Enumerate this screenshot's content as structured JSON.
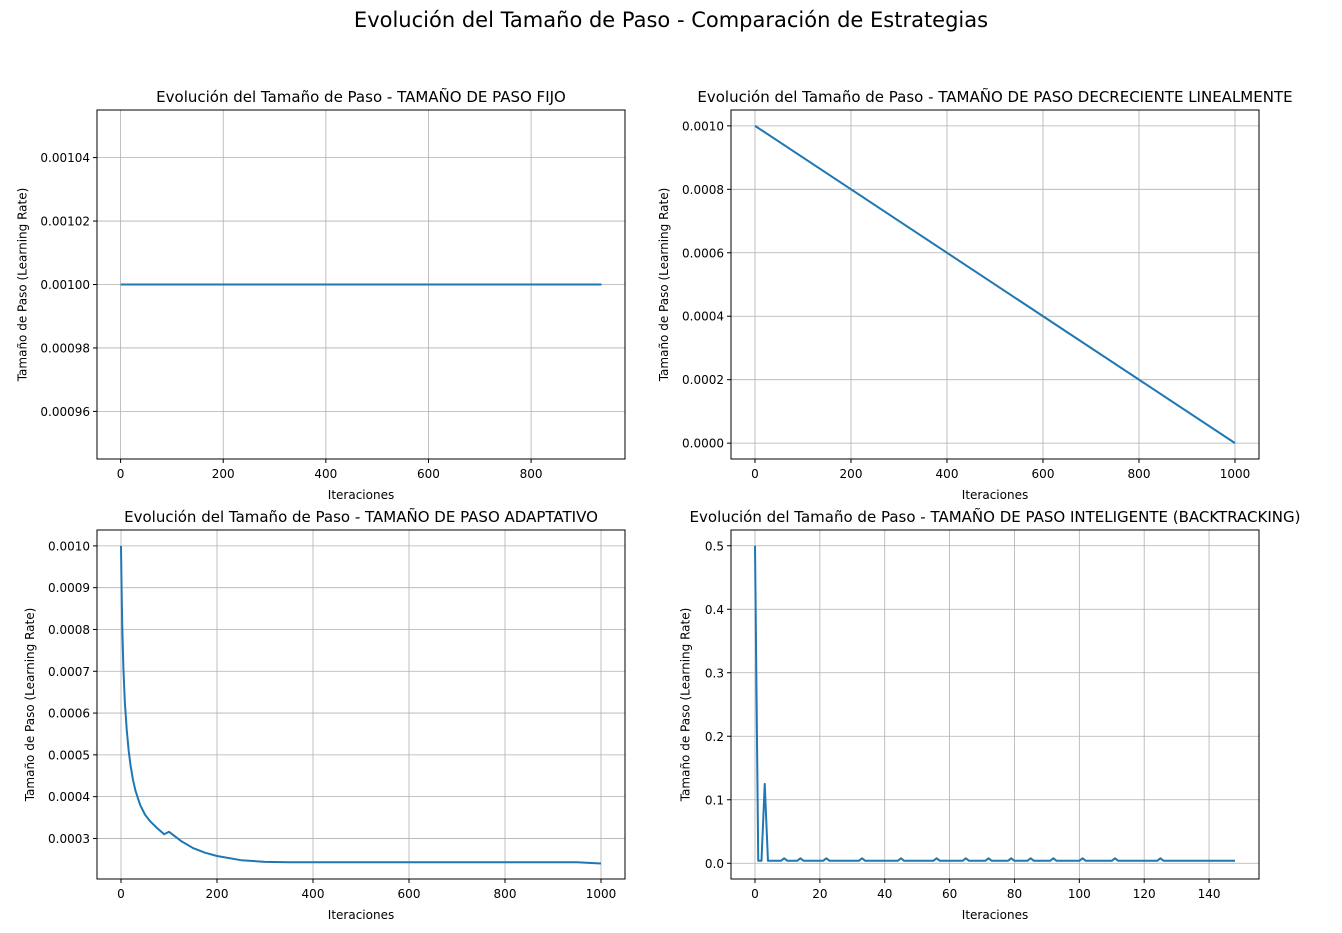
{
  "suptitle": "Evolución del Tamaño de Paso - Comparación de Estrategias",
  "colors": {
    "line": "#1f77b4",
    "grid": "#b0b0b0",
    "axis": "#000000"
  },
  "chart_data": [
    {
      "type": "line",
      "title": "Evolución del Tamaño de Paso - TAMAÑO DE PASO FIJO",
      "xlabel": "Iteraciones",
      "ylabel": "Tamaño de Paso (Learning Rate)",
      "xlim": [
        -46,
        983
      ],
      "ylim": [
        0.000945,
        0.001055
      ],
      "xticks": [
        0,
        200,
        400,
        600,
        800
      ],
      "xtick_labels": [
        "0",
        "200",
        "400",
        "600",
        "800"
      ],
      "yticks": [
        0.00096,
        0.00098,
        0.001,
        0.00102,
        0.00104
      ],
      "ytick_labels": [
        "0.00096",
        "0.00098",
        "0.00100",
        "0.00102",
        "0.00104"
      ],
      "grid": true,
      "series": [
        {
          "x": [
            0,
            937
          ],
          "y": [
            0.001,
            0.001
          ]
        }
      ]
    },
    {
      "type": "line",
      "title": "Evolución del Tamaño de Paso - TAMAÑO DE PASO DECRECIENTE LINEALMENTE",
      "xlabel": "Iteraciones",
      "ylabel": "Tamaño de Paso (Learning Rate)",
      "xlim": [
        -50,
        1050
      ],
      "ylim": [
        -5e-05,
        0.00105
      ],
      "xticks": [
        0,
        200,
        400,
        600,
        800,
        1000
      ],
      "xtick_labels": [
        "0",
        "200",
        "400",
        "600",
        "800",
        "1000"
      ],
      "yticks": [
        0,
        0.0002,
        0.0004,
        0.0006,
        0.0008,
        0.001
      ],
      "ytick_labels": [
        "0.0000",
        "0.0002",
        "0.0004",
        "0.0006",
        "0.0008",
        "0.0010"
      ],
      "grid": true,
      "series": [
        {
          "x": [
            0,
            1000
          ],
          "y": [
            0.001,
            0
          ]
        }
      ]
    },
    {
      "type": "line",
      "title": "Evolución del Tamaño de Paso - TAMAÑO DE PASO ADAPTATIVO",
      "xlabel": "Iteraciones",
      "ylabel": "Tamaño de Paso (Learning Rate)",
      "xlim": [
        -50,
        1050
      ],
      "ylim": [
        0.000203,
        0.001038
      ],
      "xticks": [
        0,
        200,
        400,
        600,
        800,
        1000
      ],
      "xtick_labels": [
        "0",
        "200",
        "400",
        "600",
        "800",
        "1000"
      ],
      "yticks": [
        0.0003,
        0.0004,
        0.0005,
        0.0006,
        0.0007,
        0.0008,
        0.0009,
        0.001
      ],
      "ytick_labels": [
        "0.0003",
        "0.0004",
        "0.0005",
        "0.0006",
        "0.0007",
        "0.0008",
        "0.0009",
        "0.0010"
      ],
      "grid": true,
      "series": [
        {
          "x": [
            0,
            1,
            2,
            3,
            5,
            8,
            12,
            16,
            20,
            25,
            30,
            40,
            50,
            60,
            75,
            90,
            100,
            125,
            150,
            175,
            200,
            250,
            300,
            350,
            400,
            450,
            500,
            550,
            600,
            650,
            700,
            750,
            800,
            850,
            900,
            950,
            1000
          ],
          "y": [
            0.001,
            0.000913,
            0.000845,
            0.00079,
            0.000707,
            0.000626,
            0.000559,
            0.00051,
            0.000474,
            0.00044,
            0.000415,
            0.00038,
            0.000357,
            0.000342,
            0.000325,
            0.00031,
            0.000316,
            0.000294,
            0.000277,
            0.000266,
            0.000258,
            0.000248,
            0.000244,
            0.000243,
            0.000243,
            0.000243,
            0.000243,
            0.000243,
            0.000243,
            0.000243,
            0.000243,
            0.000243,
            0.000243,
            0.000243,
            0.000243,
            0.000243,
            0.00024
          ]
        }
      ]
    },
    {
      "type": "line",
      "title": "Evolución del Tamaño de Paso - TAMAÑO DE PASO INTELIGENTE (BACKTRACKING)",
      "xlabel": "Iteraciones",
      "ylabel": "Tamaño de Paso (Learning Rate)",
      "xlim": [
        -7.4,
        155.4
      ],
      "ylim": [
        -0.0248,
        0.5248
      ],
      "xticks": [
        0,
        20,
        40,
        60,
        80,
        100,
        120,
        140
      ],
      "xtick_labels": [
        "0",
        "20",
        "40",
        "60",
        "80",
        "100",
        "120",
        "140"
      ],
      "yticks": [
        0,
        0.1,
        0.2,
        0.3,
        0.4,
        0.5
      ],
      "ytick_labels": [
        "0.0",
        "0.1",
        "0.2",
        "0.3",
        "0.4",
        "0.5"
      ],
      "grid": true,
      "series": [
        {
          "x": [
            0,
            1,
            2,
            3,
            4,
            8,
            9,
            10,
            13,
            14,
            15,
            21,
            22,
            23,
            32,
            33,
            34,
            44,
            45,
            46,
            55,
            56,
            57,
            64,
            65,
            66,
            71,
            72,
            73,
            78,
            79,
            80,
            84,
            85,
            86,
            91,
            92,
            93,
            100,
            101,
            102,
            110,
            111,
            112,
            124,
            125,
            126,
            148
          ],
          "y": [
            0.5,
            0.0039,
            0.0039,
            0.125,
            0.0039,
            0.0039,
            0.0078,
            0.0039,
            0.0039,
            0.0078,
            0.0039,
            0.0039,
            0.0078,
            0.0039,
            0.0039,
            0.0078,
            0.0039,
            0.0039,
            0.0078,
            0.0039,
            0.0039,
            0.0078,
            0.0039,
            0.0039,
            0.0078,
            0.0039,
            0.0039,
            0.0078,
            0.0039,
            0.0039,
            0.0078,
            0.0039,
            0.0039,
            0.0078,
            0.0039,
            0.0039,
            0.0078,
            0.0039,
            0.0039,
            0.0078,
            0.0039,
            0.0039,
            0.0078,
            0.0039,
            0.0039,
            0.0078,
            0.0039,
            0.0039
          ]
        }
      ]
    }
  ]
}
